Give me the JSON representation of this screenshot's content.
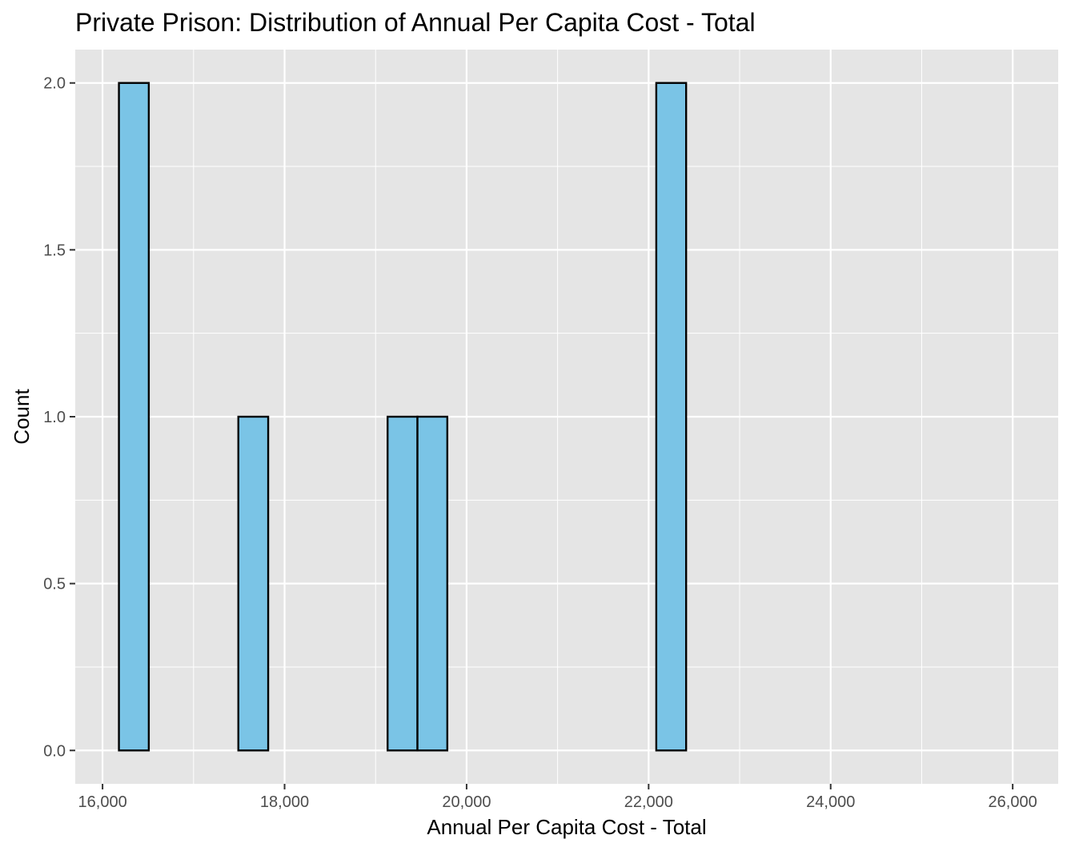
{
  "chart_data": {
    "type": "bar",
    "subtype": "histogram",
    "title": "Private Prison: Distribution of Annual Per Capita Cost - Total",
    "xlabel": "Annual Per Capita Cost - Total",
    "ylabel": "Count",
    "xlim": [
      15700,
      26500
    ],
    "ylim": [
      -0.1,
      2.1
    ],
    "x_ticks": [
      16000,
      18000,
      20000,
      22000,
      24000,
      26000
    ],
    "x_tick_labels": [
      "16,000",
      "18,000",
      "20,000",
      "22,000",
      "24,000",
      "26,000"
    ],
    "y_ticks": [
      0,
      0.5,
      1,
      1.5,
      2
    ],
    "y_tick_labels": [
      "0.0",
      "0.5",
      "1.0",
      "1.5",
      "2.0"
    ],
    "bin_width": 328,
    "bins_start": 16180,
    "counts": [
      2,
      0,
      0,
      0,
      1,
      0,
      0,
      0,
      0,
      1,
      1,
      0,
      0,
      0,
      0,
      0,
      0,
      0,
      2,
      0,
      0,
      0,
      0,
      0,
      0,
      0,
      0,
      0,
      0,
      0
    ],
    "grid": true,
    "fill_color": "#7ac4e6",
    "edge_color": "#000000",
    "panel_color": "#e5e5e5",
    "grid_color": "#ffffff"
  }
}
